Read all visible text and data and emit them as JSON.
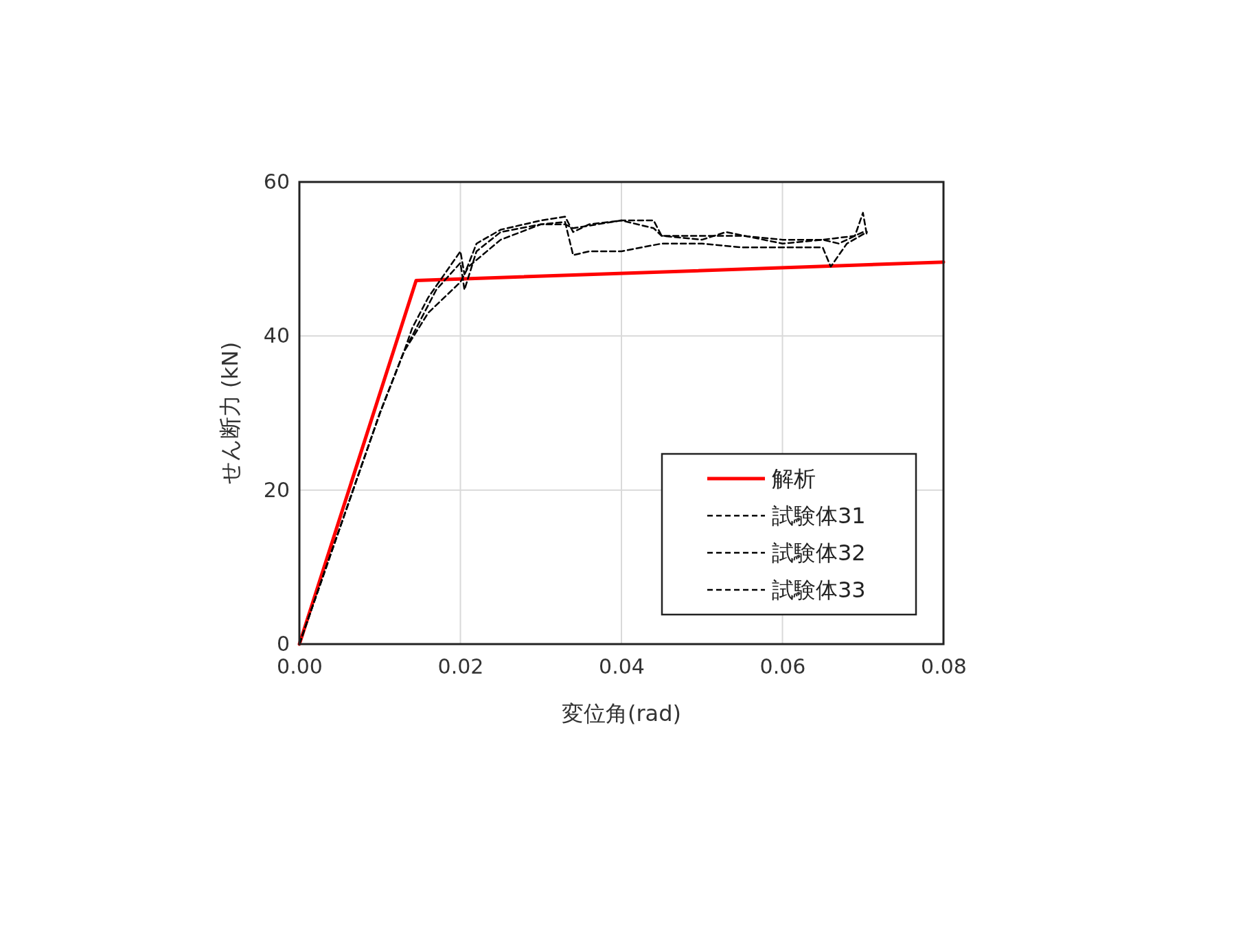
{
  "chart_data": {
    "type": "line",
    "xlabel": "変位角(rad)",
    "ylabel": "せん断力 (kN)",
    "xlim": [
      0,
      0.08
    ],
    "xticks": [
      {
        "value": 0,
        "label": "0.00"
      },
      {
        "value": 0.02,
        "label": "0.02"
      },
      {
        "value": 0.04,
        "label": "0.04"
      },
      {
        "value": 0.06,
        "label": "0.06"
      },
      {
        "value": 0.08,
        "label": "0.08"
      }
    ],
    "ylim": [
      0,
      60
    ],
    "yticks": [
      0,
      20,
      40,
      60
    ],
    "grid": true,
    "legend": "bottom right",
    "series": [
      {
        "name": "解析",
        "color": "#ff0000",
        "line_style": "solid",
        "x": [
          0,
          0.0145,
          0.08
        ],
        "values": [
          0,
          47.2,
          49.6
        ]
      },
      {
        "name": "試験体31",
        "color": "#000000",
        "line_style": "dashed",
        "x": [
          0,
          0.005,
          0.01,
          0.013,
          0.014,
          0.016,
          0.018,
          0.02,
          0.0205,
          0.022,
          0.025,
          0.03,
          0.033,
          0.034,
          0.036,
          0.04,
          0.044,
          0.045,
          0.05,
          0.055,
          0.06,
          0.065,
          0.067,
          0.07
        ],
        "values": [
          0,
          15,
          30,
          38,
          41,
          45,
          48,
          51,
          48,
          52,
          53.8,
          55,
          55.5,
          53.5,
          54.5,
          55,
          55,
          53,
          53,
          53,
          52.5,
          52.5,
          52,
          53.5
        ]
      },
      {
        "name": "試験体32",
        "color": "#000000",
        "line_style": "dashed",
        "x": [
          0,
          0.005,
          0.01,
          0.013,
          0.014,
          0.017,
          0.02,
          0.0205,
          0.022,
          0.025,
          0.03,
          0.033,
          0.034,
          0.036,
          0.04,
          0.045,
          0.05,
          0.055,
          0.06,
          0.065,
          0.066,
          0.068,
          0.0705
        ],
        "values": [
          0,
          15,
          30,
          38,
          40,
          46,
          49.5,
          46,
          51,
          53.5,
          54.5,
          54.8,
          50.5,
          51,
          51,
          52,
          52,
          51.5,
          51.5,
          51.5,
          49,
          52,
          53.5
        ]
      },
      {
        "name": "試験体33",
        "color": "#000000",
        "line_style": "dashed",
        "x": [
          0,
          0.005,
          0.01,
          0.013,
          0.016,
          0.02,
          0.021,
          0.025,
          0.03,
          0.033,
          0.034,
          0.04,
          0.044,
          0.045,
          0.05,
          0.053,
          0.06,
          0.065,
          0.069,
          0.07,
          0.0705
        ],
        "values": [
          0,
          15,
          30,
          38,
          43,
          47,
          49,
          52.5,
          54.5,
          54.5,
          54,
          55,
          54,
          53,
          52.5,
          53.5,
          52,
          52.5,
          53,
          56,
          53
        ]
      }
    ]
  }
}
